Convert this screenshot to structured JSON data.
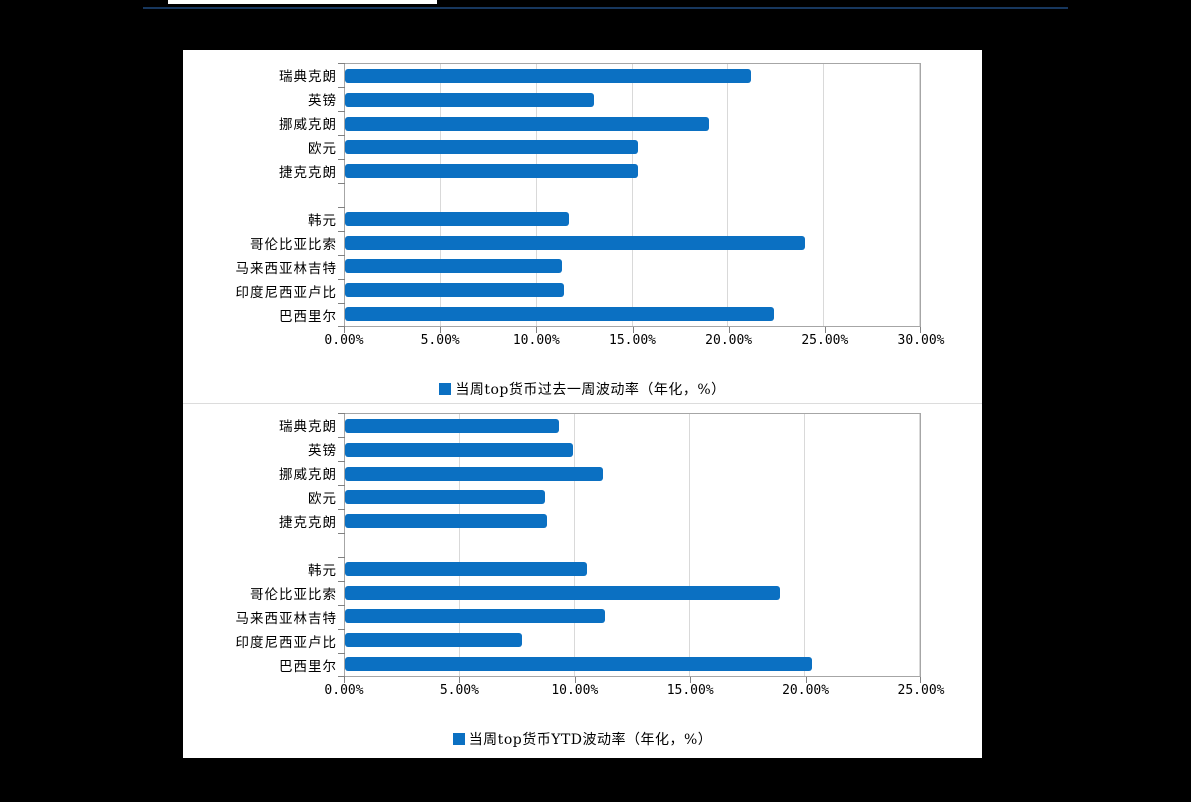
{
  "page": {
    "background_color": "#000000",
    "panel_color": "#ffffff",
    "accent_line_color": "#17375e",
    "grid_color": "#d9d9d9",
    "axis_color": "#808080"
  },
  "chart_data": [
    {
      "type": "bar",
      "orientation": "horizontal",
      "legend": "当周top货币过去一周波动率（年化，%）",
      "bar_color": "#0b70c2",
      "categories": [
        "瑞典克朗",
        "英镑",
        "挪威克朗",
        "欧元",
        "捷克克朗",
        "",
        "韩元",
        "哥伦比亚比索",
        "马来西亚林吉特",
        "印度尼西亚卢比",
        "巴西里尔"
      ],
      "values": [
        21.2,
        13.0,
        19.0,
        15.3,
        15.3,
        null,
        11.7,
        24.0,
        11.3,
        11.4,
        22.4
      ],
      "xlim": [
        0,
        30
      ],
      "tick_step": 5,
      "ticks": [
        "0.00%",
        "5.00%",
        "10.00%",
        "15.00%",
        "20.00%",
        "25.00%",
        "30.00%"
      ],
      "grid": true,
      "legend_position": "bottom"
    },
    {
      "type": "bar",
      "orientation": "horizontal",
      "legend": "当周top货币YTD波动率（年化，%）",
      "bar_color": "#0b70c2",
      "categories": [
        "瑞典克朗",
        "英镑",
        "挪威克朗",
        "欧元",
        "捷克克朗",
        "",
        "韩元",
        "哥伦比亚比索",
        "马来西亚林吉特",
        "印度尼西亚卢比",
        "巴西里尔"
      ],
      "values": [
        9.3,
        9.9,
        11.2,
        8.7,
        8.8,
        null,
        10.5,
        18.9,
        11.3,
        7.7,
        20.3
      ],
      "xlim": [
        0,
        25
      ],
      "tick_step": 5,
      "ticks": [
        "0.00%",
        "5.00%",
        "10.00%",
        "15.00%",
        "20.00%",
        "25.00%"
      ],
      "grid": true,
      "legend_position": "bottom"
    }
  ]
}
